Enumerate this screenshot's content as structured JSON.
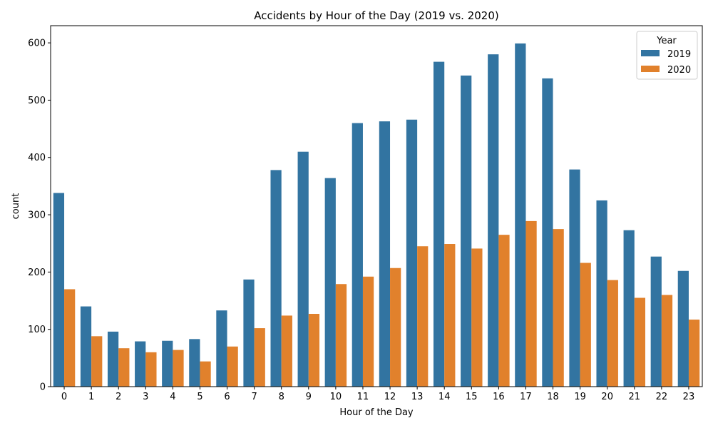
{
  "chart_data": {
    "type": "bar",
    "title": "Accidents by Hour of the Day (2019 vs. 2020)",
    "xlabel": "Hour of the Day",
    "ylabel": "count",
    "ylim": [
      0,
      630
    ],
    "yticks": [
      "0",
      "100",
      "200",
      "300",
      "400",
      "500",
      "600"
    ],
    "categories": [
      "0",
      "1",
      "2",
      "3",
      "4",
      "5",
      "6",
      "7",
      "8",
      "9",
      "10",
      "11",
      "12",
      "13",
      "14",
      "15",
      "16",
      "17",
      "18",
      "19",
      "20",
      "21",
      "22",
      "23"
    ],
    "legend": {
      "title": "Year",
      "position": "top-right"
    },
    "series": [
      {
        "name": "2019",
        "color": "#3274a1",
        "values": [
          338,
          140,
          96,
          79,
          80,
          83,
          133,
          187,
          378,
          410,
          364,
          460,
          463,
          466,
          567,
          543,
          580,
          599,
          538,
          379,
          325,
          273,
          227,
          202
        ]
      },
      {
        "name": "2020",
        "color": "#e1812c",
        "values": [
          170,
          88,
          67,
          60,
          64,
          44,
          70,
          102,
          124,
          127,
          179,
          192,
          207,
          245,
          249,
          241,
          265,
          289,
          275,
          216,
          186,
          155,
          160,
          117
        ]
      }
    ]
  }
}
